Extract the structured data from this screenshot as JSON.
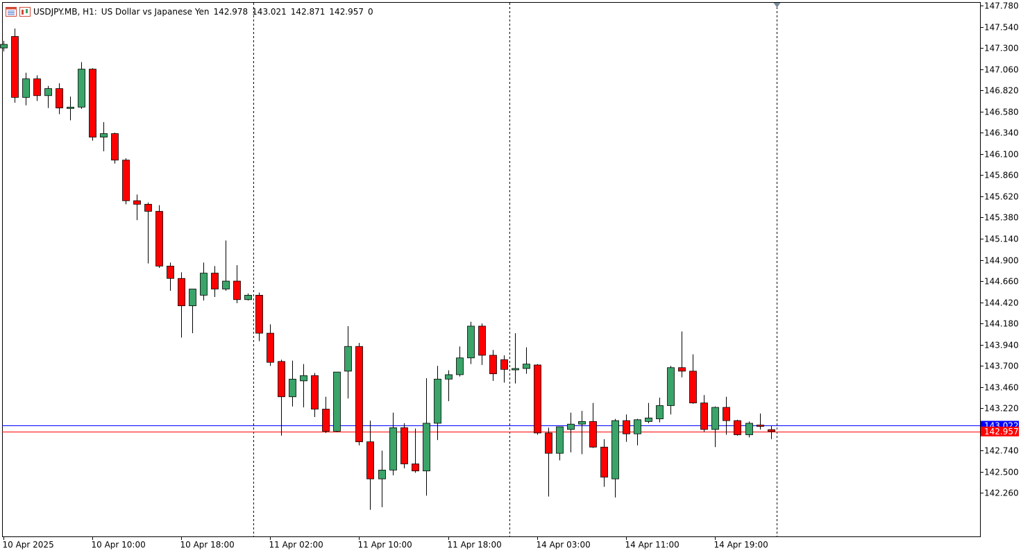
{
  "header": {
    "symbol": "USDJPY.MB, H1:",
    "description": "US Dollar vs Japanese Yen",
    "open": "142.978",
    "high": "143.021",
    "low": "142.871",
    "close": "142.957",
    "volume": "0",
    "icons": [
      "chart-window-icon",
      "chart-type-icon"
    ]
  },
  "colors": {
    "bull": "#3aa469",
    "bear": "#ff0000",
    "wick": "#000000",
    "ask_line": "#0000ff",
    "bid_line": "#ff0000",
    "ask_label_bg": "#0000ff",
    "bid_label_bg": "#ff0000",
    "grid_separator": "#000000",
    "axis": "#000000"
  },
  "price_labels": {
    "ask": "143.022",
    "bid": "142.957"
  },
  "chart_data": {
    "type": "candlestick",
    "title": "",
    "xlabel": "",
    "ylabel": "",
    "ylim": [
      142.02,
      147.78
    ],
    "y_ticks": [
      "147.780",
      "147.540",
      "147.300",
      "147.060",
      "146.820",
      "146.580",
      "146.340",
      "146.100",
      "145.860",
      "145.620",
      "145.380",
      "145.140",
      "144.900",
      "144.660",
      "144.420",
      "144.180",
      "143.940",
      "143.700",
      "143.460",
      "143.220",
      "142.980",
      "142.740",
      "142.500",
      "142.260"
    ],
    "x_tick_labels": [
      {
        "label": "10 Apr 2025",
        "index": 0
      },
      {
        "label": "10 Apr 10:00",
        "index": 8
      },
      {
        "label": "10 Apr 18:00",
        "index": 16
      },
      {
        "label": "11 Apr 02:00",
        "index": 24
      },
      {
        "label": "11 Apr 10:00",
        "index": 32
      },
      {
        "label": "11 Apr 18:00",
        "index": 40
      },
      {
        "label": "14 Apr 03:00",
        "index": 48
      },
      {
        "label": "14 Apr 11:00",
        "index": 56
      },
      {
        "label": "14 Apr 19:00",
        "index": 64
      }
    ],
    "day_separators": [
      22,
      45,
      69
    ],
    "ask": 143.022,
    "bid": 142.957,
    "candles": [
      {
        "o": 147.3,
        "h": 147.38,
        "l": 147.26,
        "c": 147.34
      },
      {
        "o": 147.43,
        "h": 147.52,
        "l": 146.68,
        "c": 146.74
      },
      {
        "o": 146.74,
        "h": 147.02,
        "l": 146.65,
        "c": 146.95
      },
      {
        "o": 146.95,
        "h": 146.99,
        "l": 146.7,
        "c": 146.76
      },
      {
        "o": 146.76,
        "h": 146.87,
        "l": 146.62,
        "c": 146.84
      },
      {
        "o": 146.84,
        "h": 146.9,
        "l": 146.55,
        "c": 146.62
      },
      {
        "o": 146.62,
        "h": 146.75,
        "l": 146.48,
        "c": 146.63
      },
      {
        "o": 146.63,
        "h": 147.14,
        "l": 146.61,
        "c": 147.06
      },
      {
        "o": 147.06,
        "h": 147.07,
        "l": 146.25,
        "c": 146.29
      },
      {
        "o": 146.29,
        "h": 146.46,
        "l": 146.13,
        "c": 146.33
      },
      {
        "o": 146.33,
        "h": 146.34,
        "l": 145.99,
        "c": 146.03
      },
      {
        "o": 146.03,
        "h": 146.05,
        "l": 145.53,
        "c": 145.57
      },
      {
        "o": 145.57,
        "h": 145.64,
        "l": 145.35,
        "c": 145.53
      },
      {
        "o": 145.53,
        "h": 145.55,
        "l": 144.86,
        "c": 145.45
      },
      {
        "o": 145.45,
        "h": 145.52,
        "l": 144.81,
        "c": 144.83
      },
      {
        "o": 144.83,
        "h": 144.87,
        "l": 144.55,
        "c": 144.69
      },
      {
        "o": 144.69,
        "h": 144.76,
        "l": 144.02,
        "c": 144.38
      },
      {
        "o": 144.38,
        "h": 144.55,
        "l": 144.07,
        "c": 144.57
      },
      {
        "o": 144.5,
        "h": 144.87,
        "l": 144.44,
        "c": 144.75
      },
      {
        "o": 144.75,
        "h": 144.83,
        "l": 144.48,
        "c": 144.57
      },
      {
        "o": 144.57,
        "h": 145.12,
        "l": 144.55,
        "c": 144.66
      },
      {
        "o": 144.66,
        "h": 144.84,
        "l": 144.41,
        "c": 144.45
      },
      {
        "o": 144.45,
        "h": 144.52,
        "l": 144.44,
        "c": 144.5
      },
      {
        "o": 144.5,
        "h": 144.53,
        "l": 143.98,
        "c": 144.07
      },
      {
        "o": 144.07,
        "h": 144.17,
        "l": 143.7,
        "c": 143.74
      },
      {
        "o": 143.75,
        "h": 143.77,
        "l": 142.91,
        "c": 143.35
      },
      {
        "o": 143.35,
        "h": 143.76,
        "l": 143.24,
        "c": 143.55
      },
      {
        "o": 143.53,
        "h": 143.72,
        "l": 143.23,
        "c": 143.59
      },
      {
        "o": 143.59,
        "h": 143.62,
        "l": 143.12,
        "c": 143.21
      },
      {
        "o": 143.21,
        "h": 143.35,
        "l": 142.94,
        "c": 142.96
      },
      {
        "o": 142.96,
        "h": 143.62,
        "l": 142.95,
        "c": 143.63
      },
      {
        "o": 143.64,
        "h": 144.15,
        "l": 143.33,
        "c": 143.92
      },
      {
        "o": 143.92,
        "h": 143.96,
        "l": 142.8,
        "c": 142.84
      },
      {
        "o": 142.84,
        "h": 143.08,
        "l": 142.07,
        "c": 142.42
      },
      {
        "o": 142.42,
        "h": 142.74,
        "l": 142.1,
        "c": 142.52
      },
      {
        "o": 142.52,
        "h": 143.17,
        "l": 142.46,
        "c": 143.0
      },
      {
        "o": 143.0,
        "h": 143.05,
        "l": 142.54,
        "c": 142.59
      },
      {
        "o": 142.59,
        "h": 142.99,
        "l": 142.49,
        "c": 142.51
      },
      {
        "o": 142.51,
        "h": 143.56,
        "l": 142.23,
        "c": 143.05
      },
      {
        "o": 143.05,
        "h": 143.7,
        "l": 142.86,
        "c": 143.55
      },
      {
        "o": 143.55,
        "h": 143.65,
        "l": 143.3,
        "c": 143.6
      },
      {
        "o": 143.6,
        "h": 143.92,
        "l": 143.58,
        "c": 143.79
      },
      {
        "o": 143.79,
        "h": 144.2,
        "l": 143.72,
        "c": 144.15
      },
      {
        "o": 144.15,
        "h": 144.18,
        "l": 143.71,
        "c": 143.82
      },
      {
        "o": 143.82,
        "h": 143.88,
        "l": 143.53,
        "c": 143.61
      },
      {
        "o": 143.77,
        "h": 143.82,
        "l": 143.51,
        "c": 143.66
      },
      {
        "o": 143.66,
        "h": 144.07,
        "l": 143.5,
        "c": 143.67
      },
      {
        "o": 143.67,
        "h": 143.91,
        "l": 143.61,
        "c": 143.72
      },
      {
        "o": 143.71,
        "h": 143.72,
        "l": 142.92,
        "c": 142.94
      },
      {
        "o": 142.94,
        "h": 143.0,
        "l": 142.22,
        "c": 142.71
      },
      {
        "o": 142.71,
        "h": 143.01,
        "l": 142.63,
        "c": 143.01
      },
      {
        "o": 142.98,
        "h": 143.17,
        "l": 142.72,
        "c": 143.04
      },
      {
        "o": 143.04,
        "h": 143.19,
        "l": 142.7,
        "c": 143.07
      },
      {
        "o": 143.07,
        "h": 143.28,
        "l": 142.77,
        "c": 142.78
      },
      {
        "o": 142.78,
        "h": 142.87,
        "l": 142.33,
        "c": 142.44
      },
      {
        "o": 142.42,
        "h": 143.1,
        "l": 142.21,
        "c": 143.08
      },
      {
        "o": 143.08,
        "h": 143.15,
        "l": 142.84,
        "c": 142.93
      },
      {
        "o": 142.93,
        "h": 143.1,
        "l": 142.8,
        "c": 143.09
      },
      {
        "o": 143.07,
        "h": 143.28,
        "l": 143.05,
        "c": 143.11
      },
      {
        "o": 143.1,
        "h": 143.34,
        "l": 143.06,
        "c": 143.25
      },
      {
        "o": 143.25,
        "h": 143.7,
        "l": 143.15,
        "c": 143.68
      },
      {
        "o": 143.68,
        "h": 144.09,
        "l": 143.57,
        "c": 143.64
      },
      {
        "o": 143.64,
        "h": 143.83,
        "l": 143.27,
        "c": 143.28
      },
      {
        "o": 143.28,
        "h": 143.37,
        "l": 142.95,
        "c": 142.98
      },
      {
        "o": 142.98,
        "h": 143.24,
        "l": 142.78,
        "c": 143.23
      },
      {
        "o": 143.23,
        "h": 143.35,
        "l": 142.92,
        "c": 143.08
      },
      {
        "o": 143.08,
        "h": 143.09,
        "l": 142.91,
        "c": 142.92
      },
      {
        "o": 142.92,
        "h": 143.07,
        "l": 142.89,
        "c": 143.05
      },
      {
        "o": 143.03,
        "h": 143.16,
        "l": 142.98,
        "c": 143.02
      },
      {
        "o": 142.978,
        "h": 143.021,
        "l": 142.871,
        "c": 142.957
      }
    ]
  }
}
